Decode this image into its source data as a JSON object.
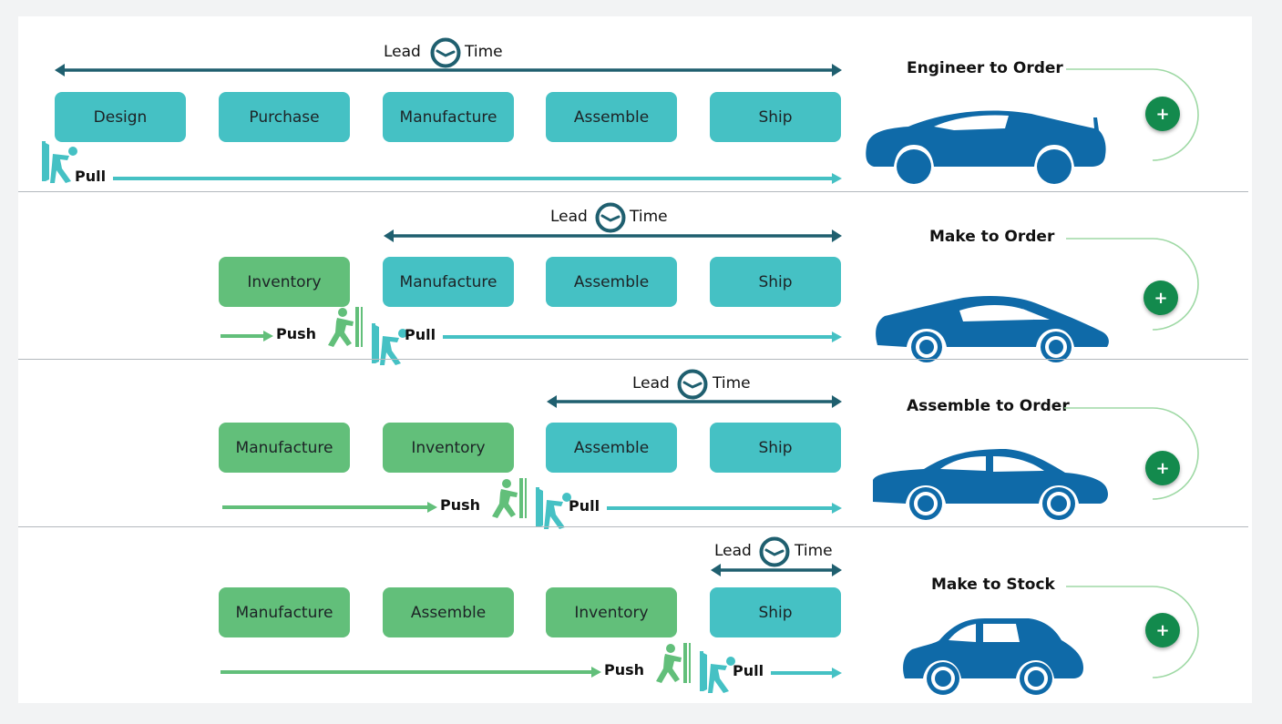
{
  "colors": {
    "teal_box": "#45c1c4",
    "green_box": "#62bf7a",
    "lead_arrow": "#1f5f6f",
    "pull_arrow": "#45c1c4",
    "push_arrow": "#62bf7a",
    "car": "#0f6aa8",
    "plus_button": "#138a4d"
  },
  "lead": "Lead",
  "time": "Time",
  "push": "Push",
  "pull": "Pull",
  "plus": "+",
  "rows": [
    {
      "strategy": "Engineer to Order",
      "steps": [
        "Design",
        "Purchase",
        "Manufacture",
        "Assemble",
        "Ship"
      ],
      "step_styles": [
        "teal",
        "teal",
        "teal",
        "teal",
        "teal"
      ],
      "icons": [
        "door-pull-person-icon",
        "clock-icon",
        "sports-car-icon"
      ]
    },
    {
      "strategy": "Make to Order",
      "steps": [
        "Inventory",
        "Manufacture",
        "Assemble",
        "Ship"
      ],
      "step_styles": [
        "green",
        "teal",
        "teal",
        "teal"
      ],
      "icons": [
        "door-push-person-icon",
        "door-pull-person-icon",
        "clock-icon",
        "coupe-car-icon"
      ]
    },
    {
      "strategy": "Assemble to Order",
      "steps": [
        "Manufacture",
        "Inventory",
        "Assemble",
        "Ship"
      ],
      "step_styles": [
        "green",
        "green",
        "teal",
        "teal"
      ],
      "icons": [
        "door-push-person-icon",
        "door-pull-person-icon",
        "clock-icon",
        "sedan-car-icon"
      ]
    },
    {
      "strategy": "Make to Stock",
      "steps": [
        "Manufacture",
        "Assemble",
        "Inventory",
        "Ship"
      ],
      "step_styles": [
        "green",
        "green",
        "green",
        "teal"
      ],
      "icons": [
        "door-push-person-icon",
        "door-pull-person-icon",
        "clock-icon",
        "hatchback-car-icon"
      ]
    }
  ]
}
